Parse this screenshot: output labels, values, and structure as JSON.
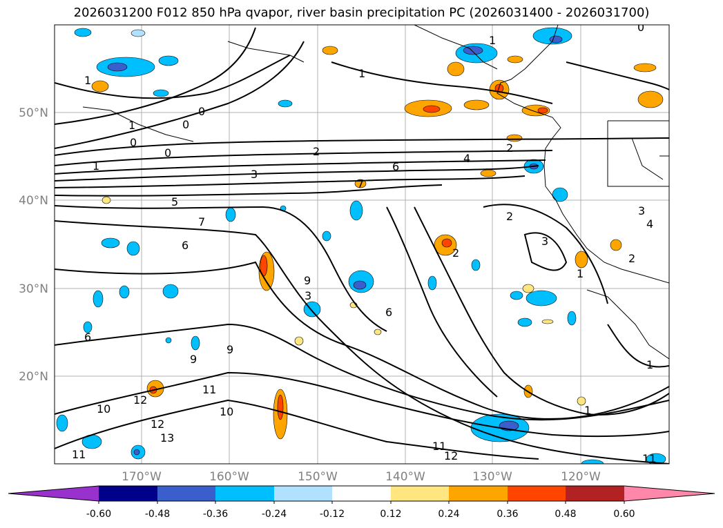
{
  "title": "2026031200 F012 850 hPa qvapor, river basin precipitation PC (2026031400 - 2026031700)",
  "lat_labels": [
    "50°N",
    "40°N",
    "30°N",
    "20°N"
  ],
  "lon_labels": [
    "170°W",
    "160°W",
    "150°W",
    "140°W",
    "130°W",
    "120°W"
  ],
  "colorbar": {
    "ticks": [
      "-0.60",
      "-0.48",
      "-0.36",
      "-0.24",
      "-0.12",
      "0.12",
      "0.24",
      "0.36",
      "0.48",
      "0.60"
    ],
    "colors": [
      "#9932cc",
      "#00008b",
      "#3a5fcd",
      "#00bfff",
      "#b0e2ff",
      "#ffffff",
      "#ffe680",
      "#ffa500",
      "#ff4500",
      "#b22222",
      "#ff88aa"
    ]
  },
  "contour_labels": [
    "1",
    "0",
    "0",
    "1",
    "0",
    "0",
    "1",
    "0",
    "1",
    "2",
    "3",
    "4",
    "5",
    "6",
    "7",
    "6",
    "7",
    "2",
    "2",
    "3",
    "1",
    "2",
    "6",
    "9",
    "3",
    "6",
    "9",
    "9",
    "10",
    "12",
    "12",
    "13",
    "11",
    "11",
    "10",
    "11",
    "12",
    "1",
    "1",
    "2",
    "3",
    "4",
    "1",
    "11"
  ]
}
